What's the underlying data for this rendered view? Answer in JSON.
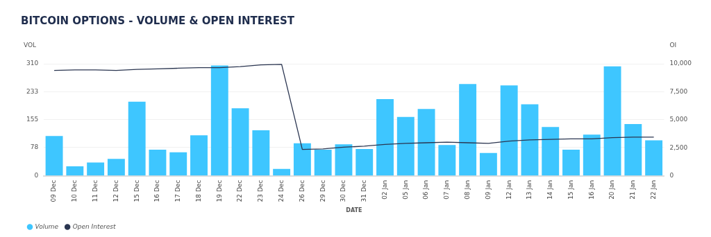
{
  "chart_data": {
    "type": "bar",
    "title": "BITCOIN OPTIONS - VOLUME & OPEN INTEREST",
    "xlabel": "DATE",
    "ylabel": "VOL",
    "y2label": "OI",
    "categories": [
      "09 Dec",
      "10 Dec",
      "11 Dec",
      "12 Dec",
      "15 Dec",
      "16 Dec",
      "17 Dec",
      "18 Dec",
      "19 Dec",
      "22 Dec",
      "23 Dec",
      "24 Dec",
      "26 Dec",
      "29 Dec",
      "30 Dec",
      "31 Dec",
      "02 Jan",
      "05 Jan",
      "06 Jan",
      "07 Jan",
      "08 Jan",
      "09 Jan",
      "12 Jan",
      "13 Jan",
      "14 Jan",
      "15 Jan",
      "16 Jan",
      "20 Jan",
      "21 Jan",
      "22 Jan"
    ],
    "series": [
      {
        "name": "Volume",
        "color": "#3ec6ff",
        "values": [
          110,
          26,
          37,
          47,
          205,
          72,
          65,
          112,
          305,
          187,
          126,
          19,
          90,
          72,
          87,
          74,
          212,
          163,
          185,
          85,
          254,
          63,
          250,
          198,
          135,
          72,
          114,
          303,
          143,
          98
        ]
      },
      {
        "name": "Open Interest",
        "type": "line",
        "axis": "y2",
        "color": "#2a3550",
        "values": [
          9400,
          9450,
          9450,
          9400,
          9500,
          9550,
          9600,
          9650,
          9650,
          9750,
          9900,
          9950,
          2350,
          2400,
          2550,
          2650,
          2800,
          2900,
          2950,
          3000,
          2950,
          2900,
          3100,
          3200,
          3250,
          3300,
          3300,
          3400,
          3450,
          3450
        ]
      }
    ],
    "ylim": [
      0,
      310
    ],
    "yticks": [
      0,
      78,
      155,
      233,
      310
    ],
    "y2lim": [
      0,
      10000
    ],
    "y2ticks": [
      0,
      {
        "value": 2500,
        "label": "2,500"
      },
      {
        "value": 5000,
        "label": "5,000"
      },
      {
        "value": 7500,
        "label": "7,500"
      },
      {
        "value": 10000,
        "label": "10,000"
      }
    ],
    "grid": "y",
    "legend": "bottom left",
    "marker": "none",
    "line_style": "solid"
  }
}
